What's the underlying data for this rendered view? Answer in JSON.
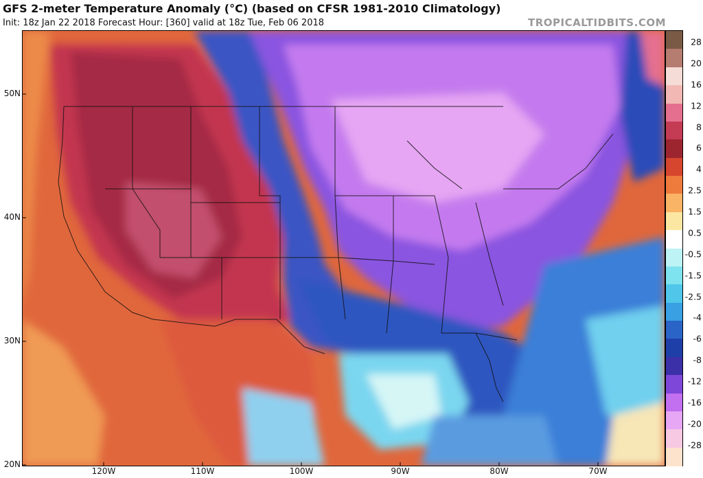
{
  "header": {
    "title": "GFS 2-meter Temperature Anomaly (°C) (based on CFSR 1981-2010 Climatology)",
    "subtitle": "Init: 18z Jan 22 2018   Forecast Hour: [360]   valid at 18z Tue, Feb 06 2018",
    "brand": "TROPICALTIDBITS.COM"
  },
  "map": {
    "lat_labels": [
      "50N",
      "40N",
      "30N",
      "20N"
    ],
    "lon_labels": [
      "120W",
      "110W",
      "100W",
      "90W",
      "80W",
      "70W"
    ]
  },
  "colorbar": {
    "labels": [
      "28",
      "20",
      "16",
      "12",
      "8",
      "6",
      "4",
      "2.5",
      "1.5",
      "0.5",
      "-0.5",
      "-1.5",
      "-2.5",
      "-4",
      "-6",
      "-8",
      "-12",
      "-16",
      "-20",
      "-28"
    ],
    "colors": [
      "#7a5a44",
      "#b57c70",
      "#f6dcd6",
      "#f2b9b4",
      "#e56f8f",
      "#c43b54",
      "#9c2530",
      "#d6452d",
      "#ee7a3c",
      "#f9b466",
      "#fce7a2",
      "#ffffff",
      "#bdf3f5",
      "#7ee3ee",
      "#4fc6ea",
      "#38a0e3",
      "#2a64c7",
      "#1f3fa8",
      "#3c30a8",
      "#7f47d9",
      "#c26ff0",
      "#e7a7f4",
      "#f7c9e3",
      "#fde3cc"
    ]
  }
}
